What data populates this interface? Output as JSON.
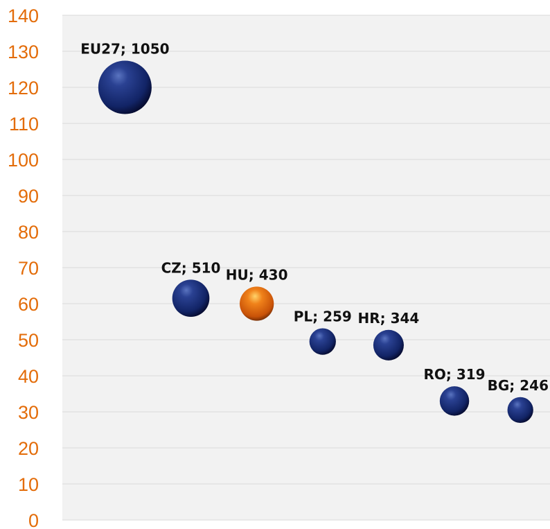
{
  "chart_data": {
    "type": "bubble",
    "title": "",
    "xlabel": "",
    "ylabel": "",
    "ylim": [
      0,
      140
    ],
    "y_ticks": [
      "0",
      "10",
      "20",
      "30",
      "40",
      "50",
      "60",
      "70",
      "80",
      "90",
      "100",
      "110",
      "120",
      "130",
      "140"
    ],
    "grid": true,
    "colors": {
      "default": "#1a2e6e",
      "highlight": "#e8730f",
      "tick_label": "#e36c09",
      "grid": "#d9d9d9",
      "plot_bg": "#f2f2f2"
    },
    "points": [
      {
        "label": "EU27; 1050",
        "name": "EU27",
        "size": 1050,
        "x": 1,
        "y": 120,
        "highlight": false
      },
      {
        "label": "CZ; 510",
        "name": "CZ",
        "size": 510,
        "x": 2,
        "y": 61.5,
        "highlight": false
      },
      {
        "label": "HU; 430",
        "name": "HU",
        "size": 430,
        "x": 3,
        "y": 60,
        "highlight": true
      },
      {
        "label": "PL; 259",
        "name": "PL",
        "size": 259,
        "x": 4,
        "y": 49.5,
        "highlight": false
      },
      {
        "label": "HR; 344",
        "name": "HR",
        "size": 344,
        "x": 5,
        "y": 48.5,
        "highlight": false
      },
      {
        "label": "RO; 319",
        "name": "RO",
        "size": 319,
        "x": 6,
        "y": 33,
        "highlight": false
      },
      {
        "label": "BG; 246",
        "name": "BG",
        "size": 246,
        "x": 7,
        "y": 30.5,
        "highlight": false
      }
    ]
  }
}
